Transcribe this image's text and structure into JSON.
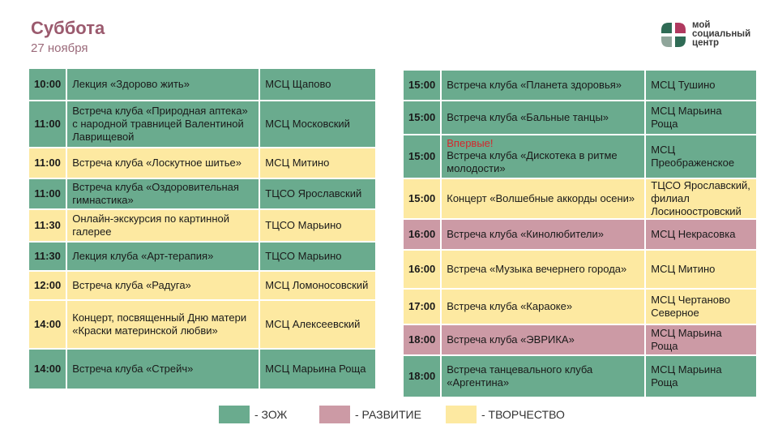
{
  "header": {
    "title": "Суббота",
    "date": "27 ноября"
  },
  "logo": {
    "line1": "мой",
    "line2": "социальный",
    "line3": "центр"
  },
  "colors": {
    "zoj": "#6aab8e",
    "razv": "#cc9aa5",
    "tvor": "#fde9a1",
    "new": "#d3282d"
  },
  "left_rows": [
    {
      "time": "10:00",
      "event": "Лекция «Здорово жить»",
      "place": "МСЦ Щапово",
      "cat": "zoj"
    },
    {
      "time": "11:00",
      "event": "Встреча клуба «Природная аптека» с народной травницей Валентиной Лаврищевой",
      "place": "МСЦ Московский",
      "cat": "zoj"
    },
    {
      "time": "11:00",
      "event": "Встреча клуба «Лоскутное шитье»",
      "place": "МСЦ Митино",
      "cat": "tvor"
    },
    {
      "time": "11:00",
      "event": "Встреча клуба «Оздоровительная гимнастика»",
      "place": "ТЦСО Ярославский",
      "cat": "zoj"
    },
    {
      "time": "11:30",
      "event": "Онлайн-экскурсия по картинной галерее",
      "place": "ТЦСО Марьино",
      "cat": "tvor"
    },
    {
      "time": "11:30",
      "event": "Лекция клуба «Арт-терапия»",
      "place": "ТЦСО Марьино",
      "cat": "zoj"
    },
    {
      "time": "12:00",
      "event": "Встреча клуба «Радуга»",
      "place": "МСЦ Ломоносовский",
      "cat": "tvor"
    },
    {
      "time": "14:00",
      "event": "Концерт, посвященный Дню матери «Краски материнской любви»",
      "place": "МСЦ Алексеевский",
      "cat": "tvor"
    },
    {
      "time": "14:00",
      "event": "Встреча клуба «Стрейч»",
      "place": "МСЦ Марьина Роща",
      "cat": "zoj"
    }
  ],
  "right_rows": [
    {
      "time": "15:00",
      "event": "Встреча клуба «Планета здоровья»",
      "place": "МСЦ Тушино",
      "cat": "zoj"
    },
    {
      "time": "15:00",
      "event": "Встреча клуба «Бальные танцы»",
      "place": "МСЦ Марьина Роща",
      "cat": "zoj"
    },
    {
      "time": "15:00",
      "note": "Впервые!",
      "event": "Встреча клуба «Дискотека в ритме молодости»",
      "place": "МСЦ Преображенское",
      "cat": "zoj"
    },
    {
      "time": "15:00",
      "event": "Концерт «Волшебные аккорды осени»",
      "place": "ТЦСО Ярославский, филиал Лосиноостровский",
      "cat": "tvor"
    },
    {
      "time": "16:00",
      "event": "Встреча клуба «Кинолюбители»",
      "place": "МСЦ Некрасовка",
      "cat": "razv"
    },
    {
      "time": "16:00",
      "event": "Встреча «Музыка вечернего города»",
      "place": "МСЦ Митино",
      "cat": "tvor"
    },
    {
      "time": "17:00",
      "event": "Встреча клуба «Караоке»",
      "place": "МСЦ Чертаново Северное",
      "cat": "tvor"
    },
    {
      "time": "18:00",
      "event": "Встреча клуба «ЭВРИКА»",
      "place": "МСЦ Марьина Роща",
      "cat": "razv"
    },
    {
      "time": "18:00",
      "event": "Встреча танцевального клуба «Аргентина»",
      "place": "МСЦ Марьина Роща",
      "cat": "zoj"
    }
  ],
  "legend": [
    {
      "label": "- ЗОЖ",
      "cat": "zoj"
    },
    {
      "label": "- РАЗВИТИЕ",
      "cat": "razv"
    },
    {
      "label": "- ТВОРЧЕСТВО",
      "cat": "tvor"
    }
  ]
}
